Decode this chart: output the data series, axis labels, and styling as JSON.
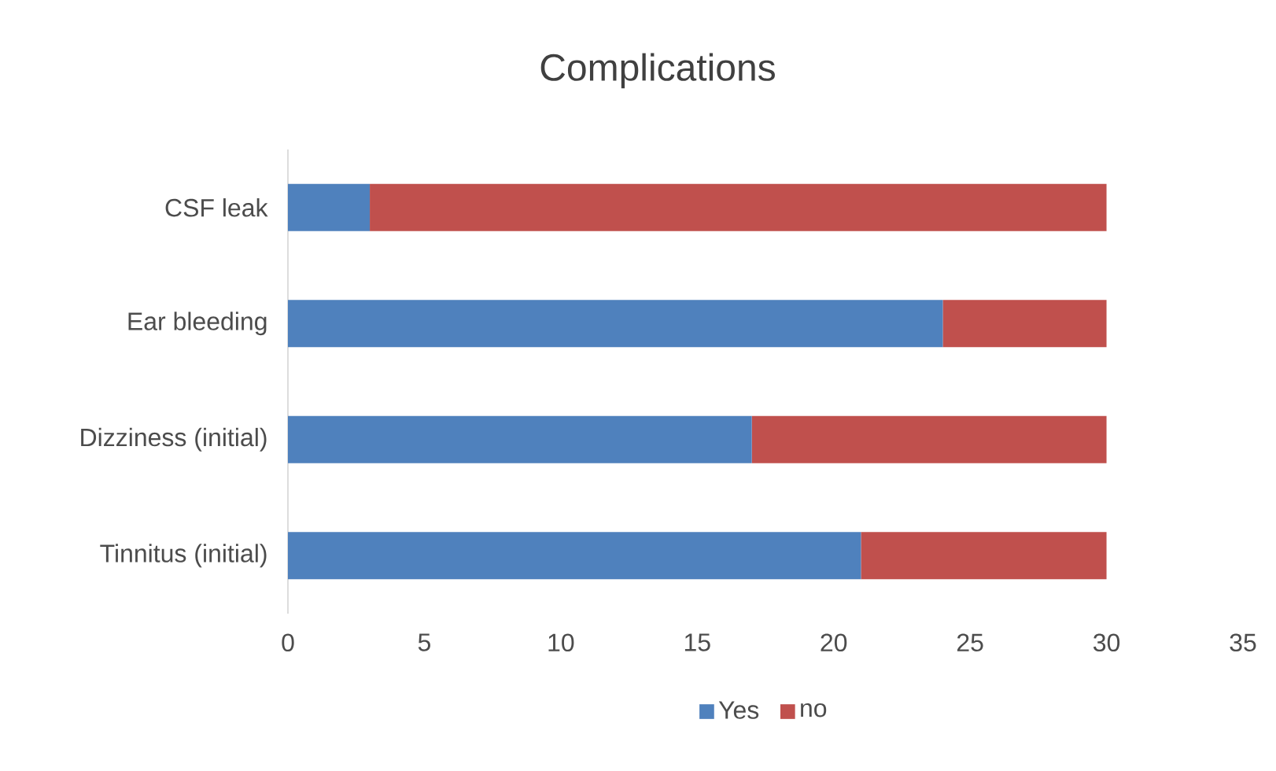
{
  "chart_data": {
    "type": "bar",
    "orientation": "horizontal",
    "stacked": true,
    "title": "Complications",
    "categories": [
      "CSF leak",
      "Ear bleeding",
      "Dizziness (initial)",
      "Tinnitus (initial)"
    ],
    "series": [
      {
        "name": "Yes",
        "color": "#4f81bd",
        "values": [
          3,
          24,
          17,
          21
        ]
      },
      {
        "name": "no",
        "color": "#c0504d",
        "values": [
          27,
          6,
          13,
          9
        ]
      }
    ],
    "xlim": [
      0,
      35
    ],
    "xticks": [
      0,
      5,
      10,
      15,
      20,
      25,
      30,
      35
    ],
    "legend": "bottom",
    "grid": false
  }
}
